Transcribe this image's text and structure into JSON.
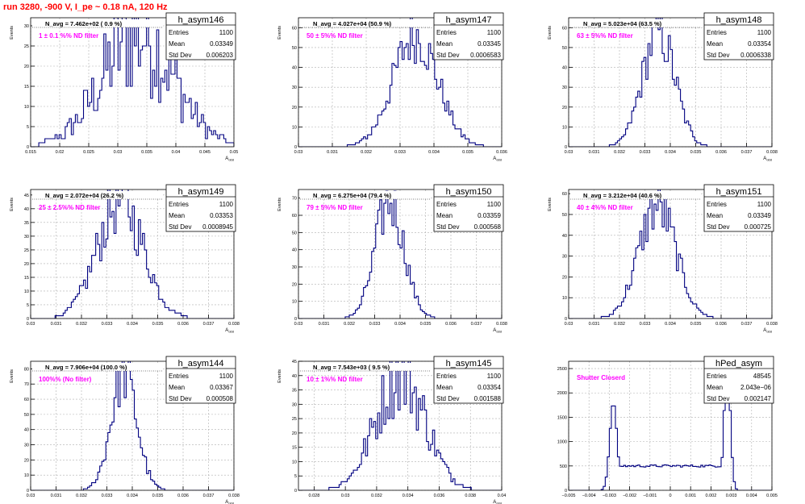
{
  "page": {
    "title": "run 3280,  -900 V, I_pe ~ 0.18 nA, 120 Hz"
  },
  "chart_data": [
    {
      "type": "histogram",
      "name": "h_asym146",
      "stats": {
        "Entries": "1100",
        "Mean": "0.03349",
        "Std Dev": "0.006203"
      },
      "navg": "N_avg = 7.462e+02 ( 0.9 %)",
      "label": "1 ± 0.1 %% ND filter",
      "ylabel": "Events",
      "xlabel": "A_ddd",
      "xlim": [
        0.015,
        0.05
      ],
      "ylim": [
        0,
        32
      ],
      "xticks": [
        "0.015",
        "0.02",
        "0.025",
        "0.03",
        "0.035",
        "0.04",
        "0.045",
        "0.05"
      ],
      "yticks": [
        "0",
        "5",
        "10",
        "15",
        "20",
        "25",
        "30"
      ],
      "mean": 0.03349,
      "sigma": 0.006203,
      "peak": 28,
      "jag": 0.55
    },
    {
      "type": "histogram",
      "name": "h_asym147",
      "stats": {
        "Entries": "1100",
        "Mean": "0.03345",
        "Std Dev": "0.0006583"
      },
      "navg": "N_avg = 4.027e+04 (50.9 %)",
      "label": "50 ± 5%% ND filter",
      "ylabel": "Events",
      "xlabel": "A_ddd",
      "xlim": [
        0.03,
        0.036
      ],
      "ylim": [
        0,
        65
      ],
      "xticks": [
        "0.03",
        "0.031",
        "0.032",
        "0.033",
        "0.034",
        "0.035",
        "0.036"
      ],
      "yticks": [
        "0",
        "10",
        "20",
        "30",
        "40",
        "50",
        "60"
      ],
      "mean": 0.03345,
      "sigma": 0.0006583,
      "peak": 56,
      "jag": 0.25
    },
    {
      "type": "histogram",
      "name": "h_asym148",
      "stats": {
        "Entries": "1100",
        "Mean": "0.03354",
        "Std Dev": "0.0006338"
      },
      "navg": "N_avg = 5.023e+04 (63.5 %)",
      "label": "63 ± 5%% ND filter",
      "ylabel": "Events",
      "xlabel": "A_ddd",
      "xlim": [
        0.03,
        0.038
      ],
      "ylim": [
        0,
        65
      ],
      "xticks": [
        "0.03",
        "0.031",
        "0.032",
        "0.033",
        "0.034",
        "0.035",
        "0.036",
        "0.037",
        "0.038"
      ],
      "yticks": [
        "0",
        "10",
        "20",
        "30",
        "40",
        "50",
        "60"
      ],
      "mean": 0.03354,
      "sigma": 0.0006338,
      "peak": 58,
      "jag": 0.25
    },
    {
      "type": "histogram",
      "name": "h_asym149",
      "stats": {
        "Entries": "1100",
        "Mean": "0.03353",
        "Std Dev": "0.0008945"
      },
      "navg": "N_avg = 2.072e+04 (26.2 %)",
      "label": "25 ± 2.5%% ND filter",
      "ylabel": "Events",
      "xlabel": "A_ddd",
      "xlim": [
        0.03,
        0.038
      ],
      "ylim": [
        0,
        47
      ],
      "xticks": [
        "0.03",
        "0.031",
        "0.032",
        "0.033",
        "0.034",
        "0.035",
        "0.036",
        "0.037",
        "0.038"
      ],
      "yticks": [
        "0",
        "5",
        "10",
        "15",
        "20",
        "25",
        "30",
        "35",
        "40",
        "45"
      ],
      "mean": 0.03353,
      "sigma": 0.0008945,
      "peak": 43,
      "jag": 0.3
    },
    {
      "type": "histogram",
      "name": "h_asym150",
      "stats": {
        "Entries": "1100",
        "Mean": "0.03359",
        "Std Dev": "0.000568"
      },
      "navg": "N_avg = 6.275e+04 (79.4 %)",
      "label": "79 ± 5%% ND filter",
      "ylabel": "Events",
      "xlabel": "A_ddd",
      "xlim": [
        0.03,
        0.038
      ],
      "ylim": [
        0,
        75
      ],
      "xticks": [
        "0.03",
        "0.031",
        "0.032",
        "0.033",
        "0.034",
        "0.035",
        "0.036",
        "0.037",
        "0.038"
      ],
      "yticks": [
        "0",
        "10",
        "20",
        "30",
        "40",
        "50",
        "60",
        "70"
      ],
      "mean": 0.03359,
      "sigma": 0.000568,
      "peak": 68,
      "jag": 0.25
    },
    {
      "type": "histogram",
      "name": "h_asym151",
      "stats": {
        "Entries": "1100",
        "Mean": "0.03349",
        "Std Dev": "0.000725"
      },
      "navg": "N_avg = 3.212e+04 (40.6 %)",
      "label": "40 ± 4%% ND filter",
      "ylabel": "Events",
      "xlabel": "A_ddd",
      "xlim": [
        0.03,
        0.038
      ],
      "ylim": [
        0,
        62
      ],
      "xticks": [
        "0.03",
        "0.031",
        "0.032",
        "0.033",
        "0.034",
        "0.035",
        "0.036",
        "0.037",
        "0.038"
      ],
      "yticks": [
        "0",
        "10",
        "20",
        "30",
        "40",
        "50",
        "60"
      ],
      "mean": 0.03349,
      "sigma": 0.000725,
      "peak": 54,
      "jag": 0.25
    },
    {
      "type": "histogram",
      "name": "h_asym144",
      "stats": {
        "Entries": "1100",
        "Mean": "0.03367",
        "Std Dev": "0.000508"
      },
      "navg": "N_avg = 7.906e+04 (100.0 %)",
      "label": "100%% (No filter)",
      "ylabel": "Events",
      "xlabel": "A_ddd",
      "xlim": [
        0.03,
        0.038
      ],
      "ylim": [
        0,
        85
      ],
      "xticks": [
        "0.03",
        "0.031",
        "0.032",
        "0.033",
        "0.034",
        "0.035",
        "0.036",
        "0.037",
        "0.038"
      ],
      "yticks": [
        "0",
        "10",
        "20",
        "30",
        "40",
        "50",
        "60",
        "70",
        "80"
      ],
      "mean": 0.03367,
      "sigma": 0.000508,
      "peak": 76,
      "jag": 0.25
    },
    {
      "type": "histogram",
      "name": "h_asym145",
      "stats": {
        "Entries": "1100",
        "Mean": "0.03354",
        "Std Dev": "0.001588"
      },
      "navg": "N_avg = 7.543e+03 ( 9.5 %)",
      "label": "10 ± 1%% ND filter",
      "ylabel": "Events",
      "xlabel": "A_ddd",
      "xlim": [
        0.027,
        0.04
      ],
      "ylim": [
        0,
        45
      ],
      "xticks": [
        "0.028",
        "0.03",
        "0.032",
        "0.034",
        "0.036",
        "0.038",
        "0.04"
      ],
      "yticks": [
        "0",
        "5",
        "10",
        "15",
        "20",
        "25",
        "30",
        "35",
        "40",
        "45"
      ],
      "mean": 0.03354,
      "sigma": 0.001588,
      "peak": 40,
      "jag": 0.35
    },
    {
      "type": "histogram",
      "name": "hPed_asym",
      "shape": "double-peak",
      "stats": {
        "Entries": "48545",
        "Mean": "2.043e−06",
        "Std Dev": "0.002147"
      },
      "label": "Shutter Closerd",
      "ylabel": "",
      "xlabel": "",
      "xlim": [
        -0.005,
        0.005
      ],
      "ylim": [
        0,
        2650
      ],
      "xticks": [
        "−0.005",
        "−0.004",
        "−0.003",
        "−0.002",
        "−0.001",
        "0",
        "0.001",
        "0.002",
        "0.003",
        "0.004",
        "0.005"
      ],
      "yticks": [
        "0",
        "500",
        "1000",
        "1500",
        "2000",
        "2500"
      ],
      "peak_left": -0.0028,
      "peak_right": 0.0028,
      "peak_height": 1800,
      "floor": 500
    }
  ],
  "colors": {
    "title": "#ff0000",
    "label": "#ff00ff",
    "histogram": "#000080",
    "frame": "#000000",
    "grid": "#b0b0b0"
  }
}
